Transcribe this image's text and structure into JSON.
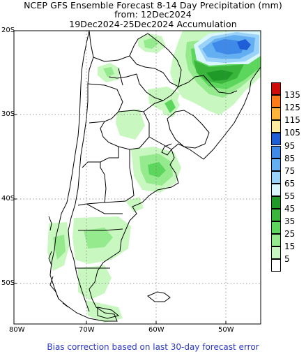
{
  "title": {
    "line1": "NCEP GFS Ensemble Forecast 8-14 Day Precipitation (mm)",
    "line2": "from: 12Dec2024",
    "line3": "19Dec2024-25Dec2024 Accumulation"
  },
  "map": {
    "lat_labels": [
      "20S",
      "30S",
      "40S",
      "50S"
    ],
    "lon_labels": [
      "80W",
      "70W",
      "60W",
      "50W"
    ],
    "grid_style": "dotted"
  },
  "legend": {
    "colors": [
      "#ce0a0a",
      "#ff7a18",
      "#ffb43c",
      "#ffeba0",
      "#1f5ed6",
      "#3f8ae8",
      "#64aef2",
      "#9ad2f9",
      "#d8f6fb",
      "#1f9a28",
      "#3ab63c",
      "#5cd65c",
      "#95ea8e",
      "#c8f8c0",
      "#ffffff"
    ],
    "labels": [
      "135",
      "125",
      "115",
      "105",
      "95",
      "85",
      "75",
      "65",
      "55",
      "45",
      "35",
      "25",
      "15",
      "5"
    ]
  },
  "footer": "Bias correction based on last 30-day forecast error"
}
